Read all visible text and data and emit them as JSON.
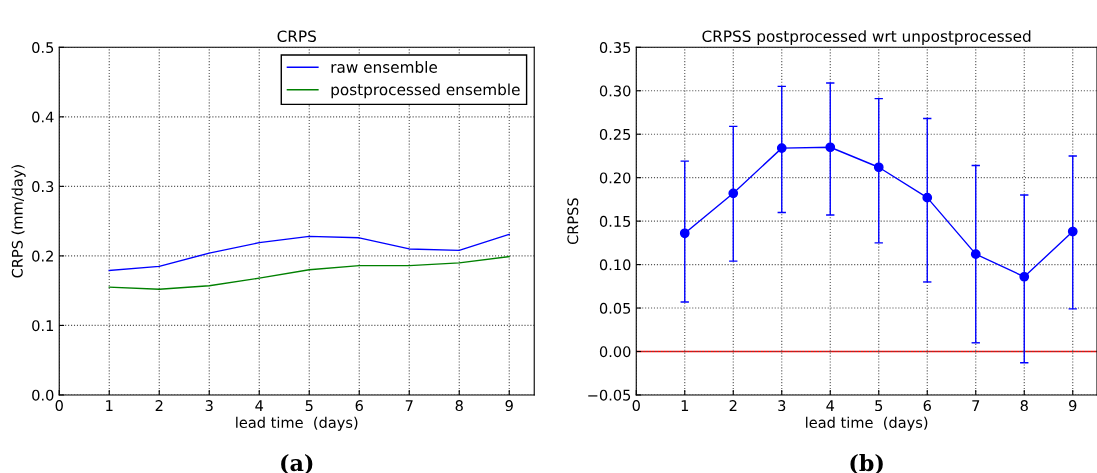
{
  "chart_data": [
    {
      "type": "line",
      "title": "CRPS",
      "xlabel": "lead time  (days)",
      "ylabel": "CRPS (mm/day)",
      "annotations": [
        "(a)"
      ],
      "x": [
        1,
        2,
        3,
        4,
        5,
        6,
        7,
        8,
        9
      ],
      "series": [
        {
          "name": "raw ensemble",
          "color": "#0000ff",
          "values": [
            0.179,
            0.185,
            0.204,
            0.219,
            0.228,
            0.226,
            0.21,
            0.208,
            0.231
          ]
        },
        {
          "name": "postprocessed ensemble",
          "color": "#008000",
          "values": [
            0.155,
            0.152,
            0.157,
            0.168,
            0.18,
            0.186,
            0.186,
            0.19,
            0.199
          ]
        }
      ],
      "xlim": [
        0,
        9.5
      ],
      "xticks": [
        0,
        1,
        2,
        3,
        4,
        5,
        6,
        7,
        8,
        9
      ],
      "ylim": [
        0,
        0.5
      ],
      "yticks": [
        {
          "value": 0,
          "label": "0.0"
        },
        0.1,
        0.2,
        0.3,
        0.4,
        0.5
      ],
      "grid": true,
      "legend": "top right",
      "marker": "none",
      "line_style": "solid"
    },
    {
      "type": "line",
      "title": "CRPSS postprocessed wrt unpostprocessed",
      "xlabel": "lead time  (days)",
      "ylabel": "CRPSS",
      "annotations": [
        "(b)"
      ],
      "x": [
        1,
        2,
        3,
        4,
        5,
        6,
        7,
        8,
        9
      ],
      "series": [
        {
          "color": "#0000ff",
          "values": [
            0.136,
            0.182,
            0.234,
            0.235,
            0.212,
            0.177,
            0.112,
            0.086,
            0.138
          ],
          "errors": [
            [
              0.057,
              0.219
            ],
            [
              0.104,
              0.259
            ],
            [
              0.16,
              0.305
            ],
            [
              0.157,
              0.309
            ],
            [
              0.125,
              0.291
            ],
            [
              0.08,
              0.268
            ],
            [
              0.01,
              0.214
            ],
            [
              -0.013,
              0.18
            ],
            [
              0.049,
              0.225
            ]
          ]
        }
      ],
      "ref_lines": [
        {
          "axis": "y",
          "value": 0,
          "color": "#ff0000",
          "line_style": "solid"
        }
      ],
      "xlim": [
        0,
        9.5
      ],
      "xticks": [
        0,
        1,
        2,
        3,
        4,
        5,
        6,
        7,
        8,
        9
      ],
      "ylim": [
        -0.05,
        0.35
      ],
      "yticks": [
        {
          "value": -0.05,
          "label": "−0.05"
        },
        {
          "value": 0,
          "label": "0.00"
        },
        {
          "value": 0.05,
          "label": "0.05"
        },
        {
          "value": 0.1,
          "label": "0.10"
        },
        {
          "value": 0.15,
          "label": "0.15"
        },
        {
          "value": 0.2,
          "label": "0.20"
        },
        {
          "value": 0.25,
          "label": "0.25"
        },
        {
          "value": 0.3,
          "label": "0.30"
        },
        {
          "value": 0.35,
          "label": "0.35"
        }
      ],
      "grid": true,
      "legend": false,
      "marker": "circle",
      "line_style": "solid"
    }
  ]
}
